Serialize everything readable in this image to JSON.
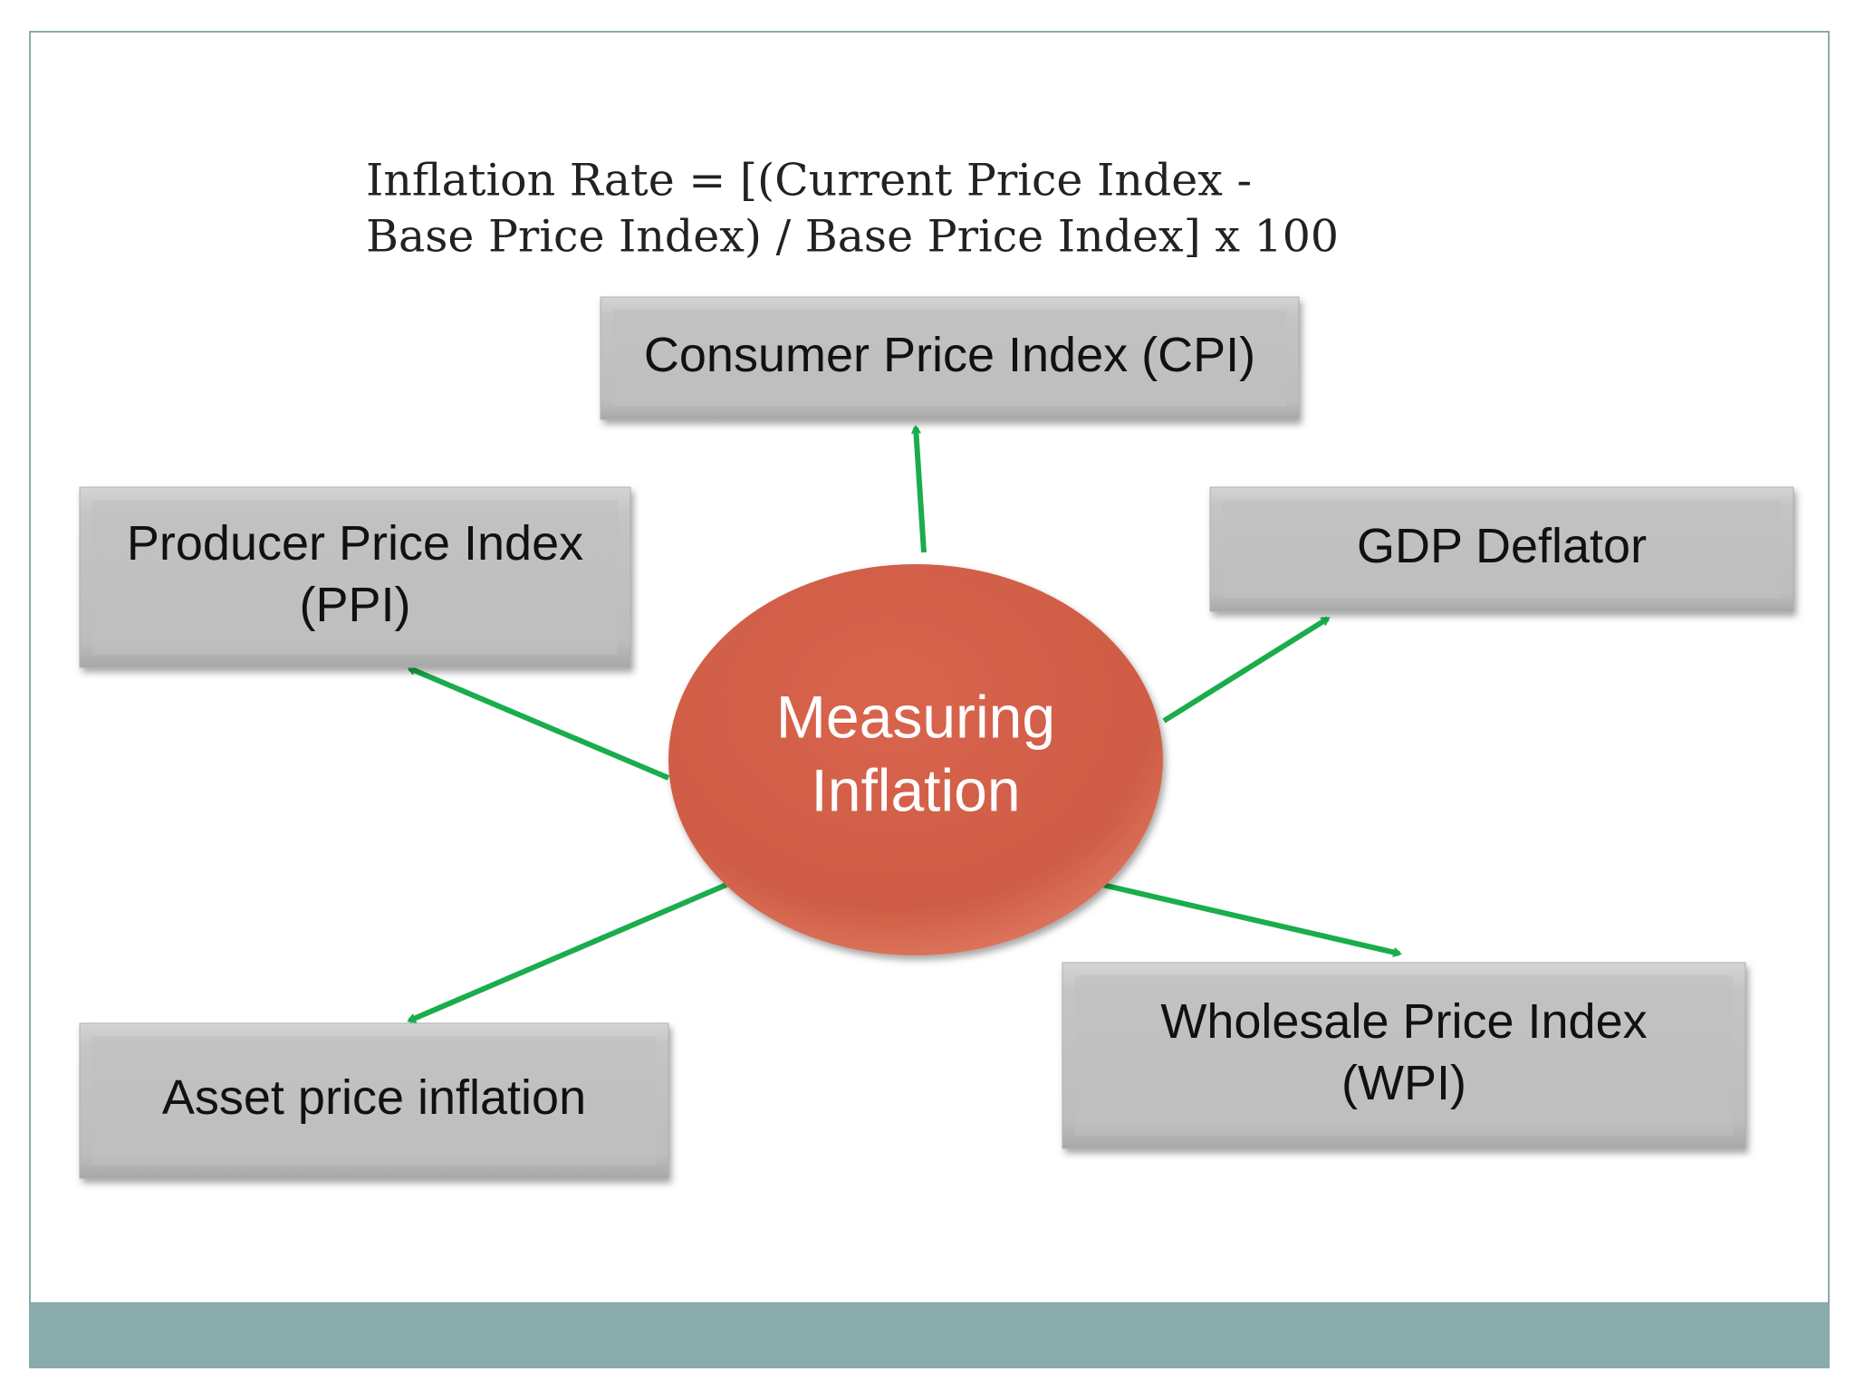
{
  "formula": {
    "lines": [
      "Inflation Rate = [(Current Price Index -",
      "Base Price Index) / Base Price Index] x 100"
    ]
  },
  "center": {
    "lines": [
      "Measuring",
      "Inflation"
    ]
  },
  "nodes": [
    {
      "lines": [
        "Consumer Price Index (CPI)"
      ]
    },
    {
      "lines": [
        "Producer Price Index",
        "(PPI)"
      ]
    },
    {
      "lines": [
        "GDP Deflator"
      ]
    },
    {
      "lines": [
        "Asset price inflation"
      ]
    },
    {
      "lines": [
        "Wholesale Price Index",
        "(WPI)"
      ]
    }
  ]
}
